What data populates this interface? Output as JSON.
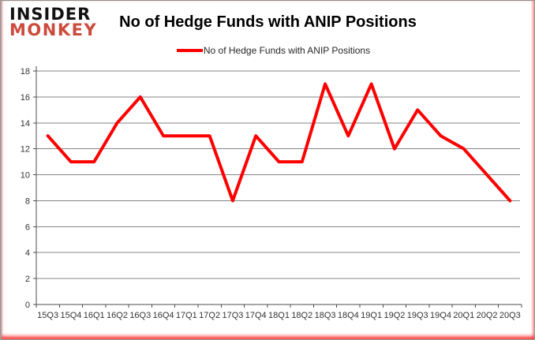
{
  "brand": {
    "line1": "INSIDER",
    "line2": "MONKEY",
    "insider_color": "#111111",
    "monkey_color": "#CB4B3C"
  },
  "header": {
    "title": "No of Hedge Funds with ANIP Positions"
  },
  "legend": {
    "label": "No of Hedge Funds with ANIP Positions",
    "swatch_color": "#FF0000"
  },
  "chart_data": {
    "type": "line",
    "title": "No of Hedge Funds with ANIP Positions",
    "categories": [
      "15Q3",
      "15Q4",
      "16Q1",
      "16Q2",
      "16Q3",
      "16Q4",
      "17Q1",
      "17Q2",
      "17Q3",
      "17Q4",
      "18Q1",
      "18Q2",
      "18Q3",
      "18Q4",
      "19Q1",
      "19Q2",
      "19Q3",
      "19Q4",
      "20Q1",
      "20Q2",
      "20Q3"
    ],
    "series": [
      {
        "name": "No of Hedge Funds with ANIP Positions",
        "color": "#FF0000",
        "values": [
          13,
          11,
          11,
          14,
          16,
          13,
          13,
          13,
          8,
          13,
          11,
          11,
          17,
          13,
          17,
          12,
          15,
          13,
          12,
          10,
          8
        ]
      }
    ],
    "xlabel": "",
    "ylabel": "",
    "ylim": [
      0,
      18
    ],
    "ytick_step": 2,
    "grid": true,
    "legend_position": "top",
    "colors": {
      "gridline": "#848484",
      "axis": "#4D4D4D",
      "tick_label": "#333333"
    }
  }
}
